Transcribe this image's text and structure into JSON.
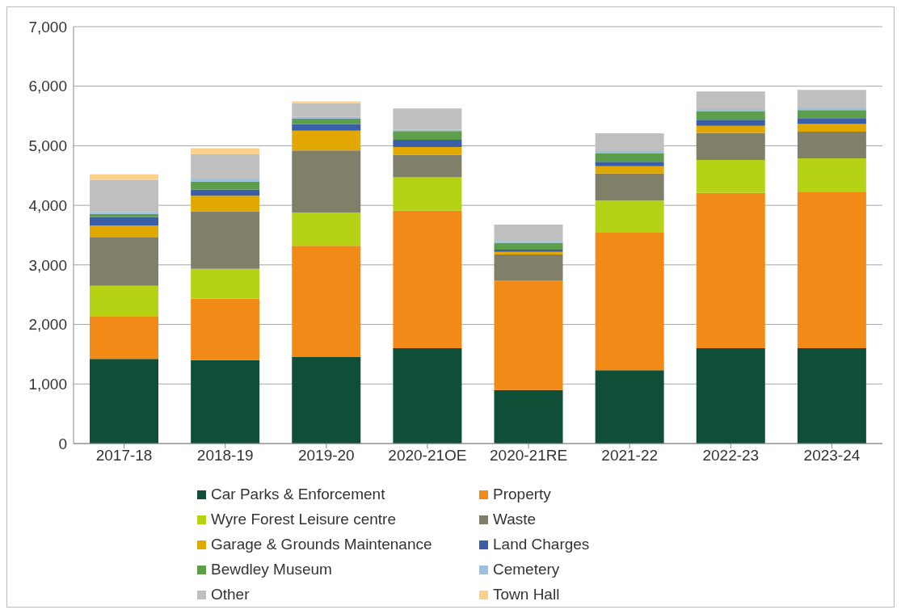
{
  "chart_data": {
    "type": "bar",
    "stacked": true,
    "categories": [
      "2017-18",
      "2018-19",
      "2019-20",
      "2020-21OE",
      "2020-21RE",
      "2021-22",
      "2022-23",
      "2023-24"
    ],
    "series": [
      {
        "name": "Car Parks & Enforcement",
        "color": "#0f4f38",
        "values": [
          1420,
          1400,
          1450,
          1600,
          900,
          1230,
          1600,
          1600
        ]
      },
      {
        "name": "Property",
        "color": "#f28a17",
        "values": [
          720,
          1030,
          1870,
          2310,
          1840,
          2320,
          2610,
          2630
        ]
      },
      {
        "name": "Wyre Forest Leisure centre",
        "color": "#b5d314",
        "values": [
          510,
          505,
          560,
          560,
          0,
          530,
          550,
          560
        ]
      },
      {
        "name": "Waste",
        "color": "#7f7f6a",
        "values": [
          810,
          965,
          1040,
          380,
          435,
          455,
          455,
          445
        ]
      },
      {
        "name": "Garage & Grounds Maintenance",
        "color": "#e0a800",
        "values": [
          200,
          260,
          335,
          130,
          45,
          120,
          120,
          130
        ]
      },
      {
        "name": "Land Charges",
        "color": "#3a5fa8",
        "values": [
          145,
          105,
          110,
          120,
          35,
          75,
          100,
          100
        ]
      },
      {
        "name": "Bewdley Museum",
        "color": "#5c9e4a",
        "values": [
          50,
          135,
          90,
          145,
          115,
          140,
          140,
          135
        ]
      },
      {
        "name": "Cemetery",
        "color": "#9dbfe0",
        "values": [
          35,
          50,
          30,
          25,
          30,
          40,
          40,
          30
        ]
      },
      {
        "name": "Other",
        "color": "#bfbfbf",
        "values": [
          540,
          410,
          230,
          355,
          275,
          300,
          295,
          310
        ]
      },
      {
        "name": "Town Hall",
        "color": "#fdd08a",
        "values": [
          90,
          100,
          30,
          0,
          0,
          0,
          0,
          0
        ]
      }
    ],
    "ylim": [
      0,
      7000
    ],
    "yticks": [
      {
        "value": 0,
        "label": "0"
      },
      {
        "value": 1000,
        "label": "1,000"
      },
      {
        "value": 2000,
        "label": "2,000"
      },
      {
        "value": 3000,
        "label": "3,000"
      },
      {
        "value": 4000,
        "label": "4,000"
      },
      {
        "value": 5000,
        "label": "5,000"
      },
      {
        "value": 6000,
        "label": "6,000"
      },
      {
        "value": 7000,
        "label": "7,000"
      }
    ],
    "grid": "y",
    "legend": "bottom"
  }
}
